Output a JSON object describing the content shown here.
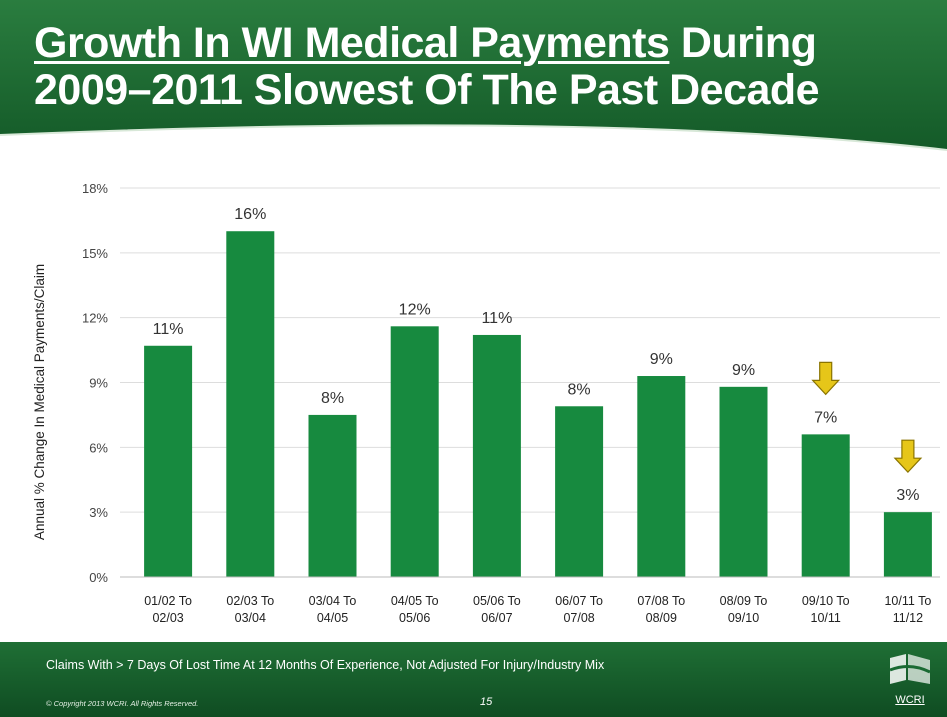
{
  "slide": {
    "title_part1": "Growth In WI Medical Payments",
    "title_part2": " During",
    "title_line2": "2009–2011 Slowest Of The Past Decade",
    "footnote": "Claims With > 7 Days Of Lost Time At 12 Months Of Experience, Not Adjusted For Injury/Industry Mix",
    "copyright": "© Copyright 2013 WCRI. All Rights Reserved.",
    "page_number": "15",
    "logo_text": "WCRI"
  },
  "colors": {
    "header_green": "#1d6b32",
    "bar_green": "#178a3f",
    "arrow_yellow": "#e6c619"
  },
  "chart_data": {
    "type": "bar",
    "ylabel": "Annual % Change In Medical Payments/Claim",
    "xlabel": "",
    "ylim": [
      0,
      18
    ],
    "yticks": [
      "0%",
      "3%",
      "6%",
      "9%",
      "12%",
      "15%",
      "18%"
    ],
    "grid": "horizontal",
    "categories": [
      [
        "01/02 To",
        "02/03"
      ],
      [
        "02/03 To",
        "03/04"
      ],
      [
        "03/04 To",
        "04/05"
      ],
      [
        "04/05 To",
        "05/06"
      ],
      [
        "05/06 To",
        "06/07"
      ],
      [
        "06/07 To",
        "07/08"
      ],
      [
        "07/08 To",
        "08/09"
      ],
      [
        "08/09 To",
        "09/10"
      ],
      [
        "09/10 To",
        "10/11"
      ],
      [
        "10/11 To",
        "11/12"
      ]
    ],
    "values": [
      10.7,
      16.0,
      7.5,
      11.6,
      11.2,
      7.9,
      9.3,
      8.8,
      6.6,
      3.0
    ],
    "data_labels": [
      "11%",
      "16%",
      "8%",
      "12%",
      "11%",
      "8%",
      "9%",
      "9%",
      "7%",
      "3%"
    ],
    "highlight_arrows": [
      8,
      9
    ]
  }
}
